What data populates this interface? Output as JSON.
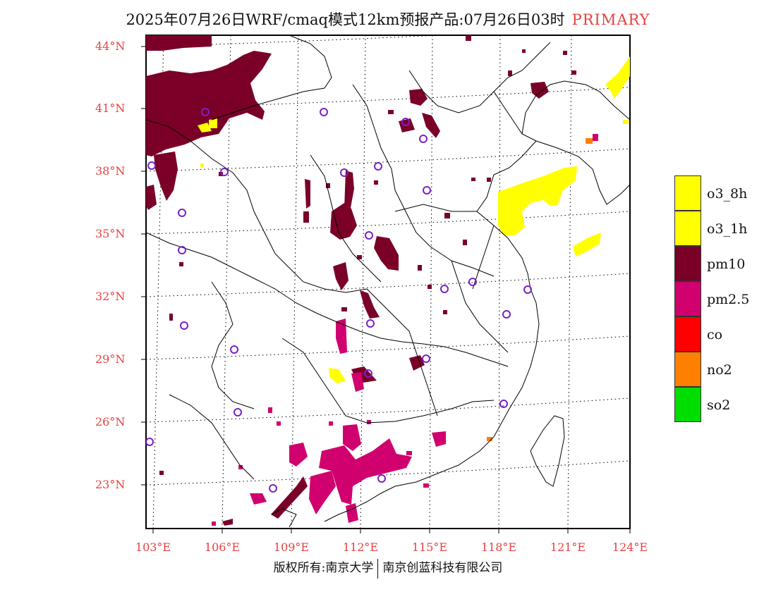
{
  "title": {
    "text": "2025年07月26日WRF/cmaq模式12km预报产品:07月26日03时",
    "tag": "PRIMARY"
  },
  "axes": {
    "lat_labels": [
      "44°N",
      "41°N",
      "38°N",
      "35°N",
      "32°N",
      "29°N",
      "26°N",
      "23°N"
    ],
    "lon_labels": [
      "103°E",
      "106°E",
      "109°E",
      "112°E",
      "115°E",
      "118°E",
      "121°E",
      "124°E"
    ]
  },
  "legend": [
    {
      "label": "o3_8h",
      "color": "#ffff00"
    },
    {
      "label": "o3_1h",
      "color": "#ffff00"
    },
    {
      "label": "pm10",
      "color": "#7a0028"
    },
    {
      "label": "pm2.5",
      "color": "#d0006e"
    },
    {
      "label": "co",
      "color": "#ff0000"
    },
    {
      "label": "no2",
      "color": "#ff8000"
    },
    {
      "label": "so2",
      "color": "#00dd00"
    }
  ],
  "colors": {
    "label_red": "#e84040",
    "station_ring": "#7a20c8",
    "boundary": "#000000"
  },
  "footer": {
    "left": "版权所有:南京大学",
    "right": "南京创蓝科技有限公司"
  }
}
